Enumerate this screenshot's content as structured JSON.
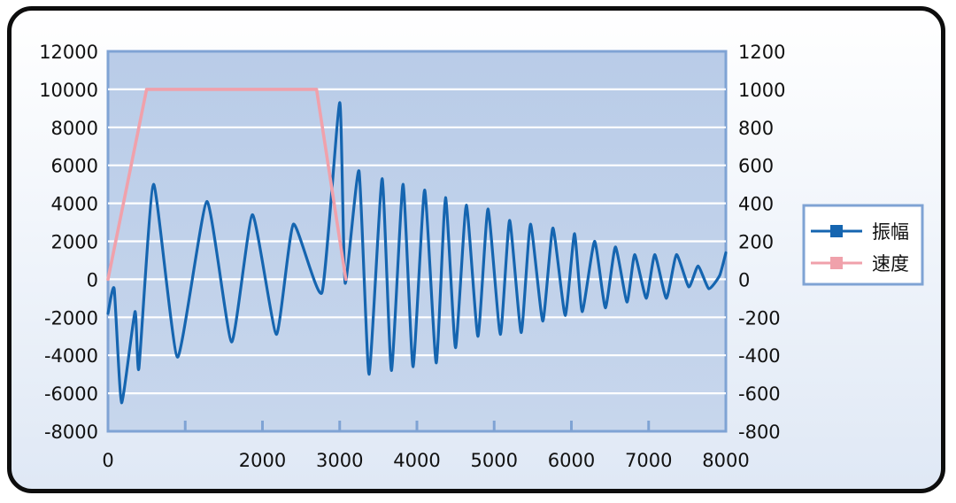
{
  "chart_data": {
    "type": "line",
    "title": "",
    "xlabel": "",
    "ylabel": "",
    "y2label": "",
    "xlim": [
      0,
      8000
    ],
    "ylim": [
      -8000,
      12000
    ],
    "y2lim": [
      -800,
      1200
    ],
    "x_ticks": [
      "0",
      "2000",
      "3000",
      "4000",
      "5000",
      "6000",
      "7000",
      "8000"
    ],
    "x_tick_values": [
      0,
      2000,
      3000,
      4000,
      5000,
      6000,
      7000,
      8000
    ],
    "y_ticks": [
      "12000",
      "10000",
      "8000",
      "6000",
      "4000",
      "2000",
      "0",
      "-2000",
      "-4000",
      "-6000",
      "-8000"
    ],
    "y_tick_values": [
      12000,
      10000,
      8000,
      6000,
      4000,
      2000,
      0,
      -2000,
      -4000,
      -6000,
      -8000
    ],
    "y2_ticks": [
      "1200",
      "1000",
      "800",
      "600",
      "400",
      "200",
      "0",
      "-200",
      "-400",
      "-600",
      "-800"
    ],
    "y2_tick_values": [
      1200,
      1000,
      800,
      600,
      400,
      200,
      0,
      -200,
      -400,
      -600,
      -800
    ],
    "minor_x_ticks": [
      1000
    ],
    "grid": "horizontal",
    "legend_position": "right",
    "series": [
      {
        "name": "振幅",
        "axis": "left",
        "color": "#1565b0",
        "x": [
          0,
          80,
          175,
          350,
          400,
          590,
          900,
          1280,
          1600,
          1870,
          2180,
          2400,
          2770,
          3000,
          3070,
          3250,
          3380,
          3550,
          3670,
          3820,
          3950,
          4100,
          4250,
          4370,
          4500,
          4640,
          4790,
          4920,
          5080,
          5200,
          5350,
          5470,
          5630,
          5760,
          5920,
          6040,
          6140,
          6300,
          6440,
          6570,
          6720,
          6820,
          6970,
          7080,
          7230,
          7360,
          7520,
          7640,
          7780,
          7920,
          8000
        ],
        "y": [
          -1800,
          -500,
          -6500,
          -1700,
          -4700,
          5000,
          -4100,
          4100,
          -3300,
          3400,
          -2900,
          2900,
          -700,
          9300,
          -200,
          5700,
          -5000,
          5300,
          -4800,
          5000,
          -4600,
          4700,
          -4400,
          4300,
          -3600,
          3900,
          -3000,
          3700,
          -2900,
          3100,
          -2800,
          2900,
          -2200,
          2700,
          -1900,
          2400,
          -1700,
          2000,
          -1500,
          1700,
          -1200,
          1300,
          -1000,
          1300,
          -1000,
          1300,
          -400,
          700,
          -500,
          200,
          1400
        ]
      },
      {
        "name": "速度",
        "axis": "right",
        "color": "#f0a1ab",
        "x": [
          0,
          500,
          2000,
          2700,
          3080
        ],
        "y": [
          0,
          1000,
          1000,
          1000,
          0
        ]
      }
    ]
  }
}
